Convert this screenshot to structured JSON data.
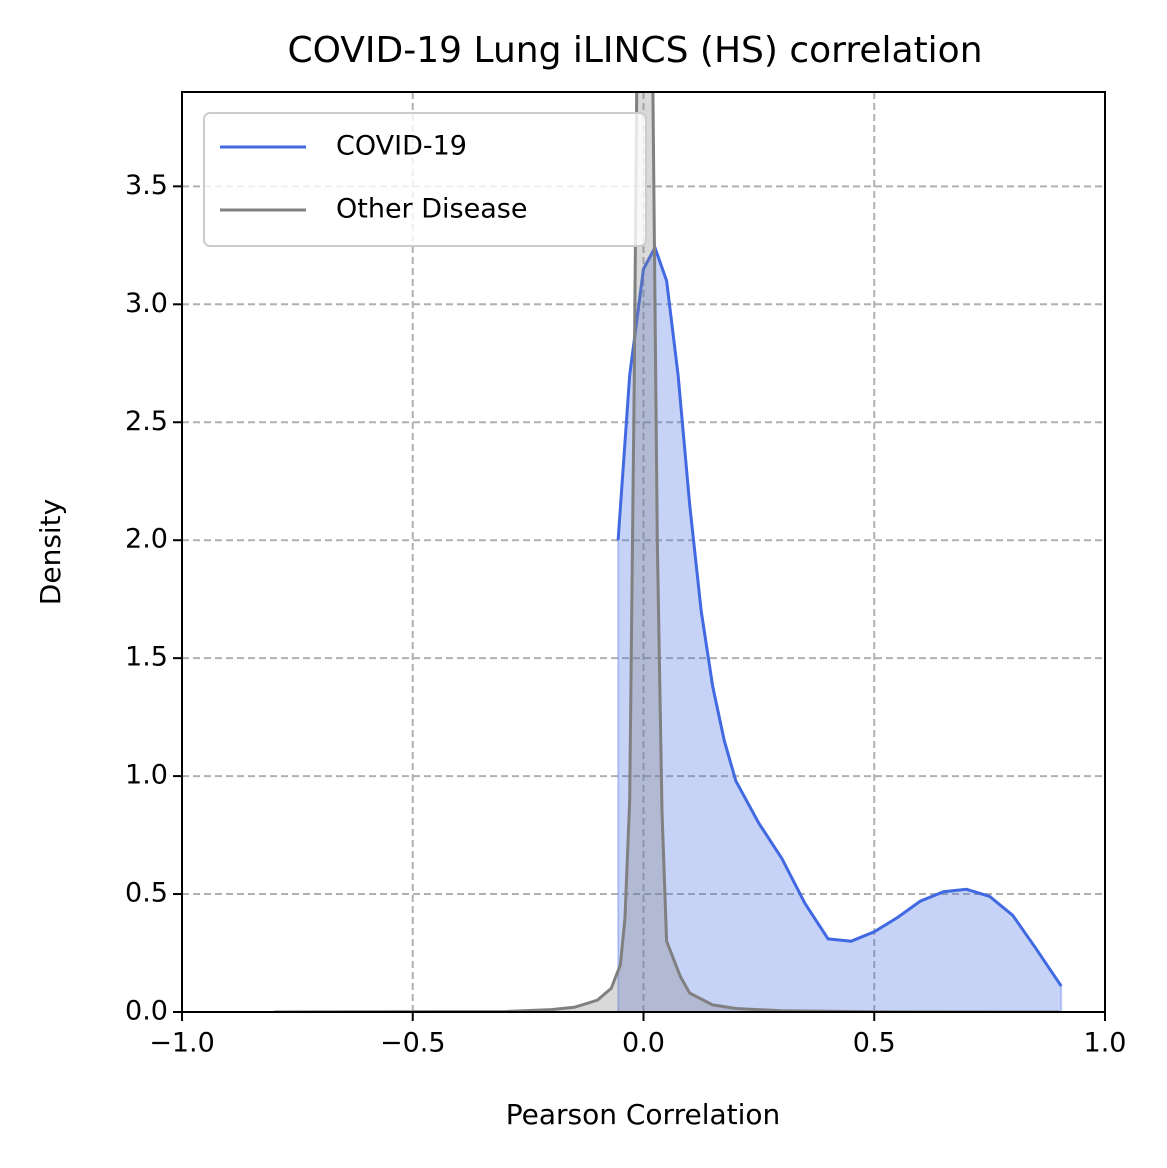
{
  "chart_data": {
    "type": "density",
    "title": "COVID-19 Lung iLINCS (HS) correlation",
    "x_label": "Pearson Correlation",
    "y_label": "Density",
    "xlim": [
      -1,
      1
    ],
    "ylim": [
      0,
      3.9
    ],
    "xticks": [
      {
        "value": -1,
        "label": "−1.0"
      },
      {
        "value": -0.5,
        "label": "−0.5"
      },
      {
        "value": 0,
        "label": "0.0"
      },
      0.5,
      {
        "value": 1,
        "label": "1.0"
      }
    ],
    "yticks": [
      {
        "value": 0,
        "label": "0.0"
      },
      0.5,
      {
        "value": 1,
        "label": "1.0"
      },
      1.5,
      {
        "value": 2,
        "label": "2.0"
      },
      2.5,
      {
        "value": 3,
        "label": "3.0"
      },
      3.5
    ],
    "grid": true,
    "legend": "upper left",
    "series": [
      {
        "name": "COVID-19",
        "color": "#4169e1",
        "x": [
          -0.055,
          -0.03,
          0.0,
          0.025,
          0.05,
          0.075,
          0.1,
          0.125,
          0.15,
          0.175,
          0.2,
          0.25,
          0.3,
          0.35,
          0.4,
          0.45,
          0.5,
          0.55,
          0.6,
          0.65,
          0.7,
          0.75,
          0.8,
          0.85,
          0.905
        ],
        "values": [
          2.0,
          2.7,
          3.15,
          3.24,
          3.1,
          2.7,
          2.15,
          1.7,
          1.38,
          1.15,
          0.98,
          0.8,
          0.65,
          0.46,
          0.31,
          0.3,
          0.34,
          0.4,
          0.47,
          0.51,
          0.52,
          0.49,
          0.41,
          0.27,
          0.11
        ]
      },
      {
        "name": "Other Disease",
        "color": "#808080",
        "x": [
          -0.8,
          -0.3,
          -0.2,
          -0.15,
          -0.1,
          -0.07,
          -0.05,
          -0.04,
          -0.03,
          -0.02,
          -0.01,
          0.0,
          0.01,
          0.02,
          0.03,
          0.04,
          0.05,
          0.08,
          0.1,
          0.15,
          0.2,
          0.3,
          0.5,
          0.9
        ],
        "values": [
          0,
          0.002,
          0.01,
          0.02,
          0.05,
          0.1,
          0.2,
          0.4,
          0.9,
          2.7,
          5,
          6,
          5.5,
          4,
          2,
          0.85,
          0.3,
          0.15,
          0.08,
          0.03,
          0.015,
          0.005,
          0.001,
          0
        ]
      }
    ]
  }
}
